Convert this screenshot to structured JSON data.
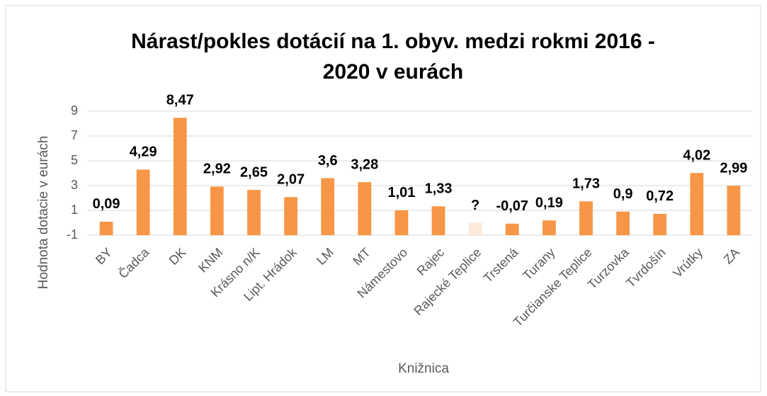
{
  "chart_data": {
    "type": "bar",
    "title": [
      "Nárast/pokles dotácií na 1. obyv. medzi rokmi 2016 -",
      "2020 v eurách"
    ],
    "x_label": "Knižnica",
    "y_label": "Hodnota dotacie v eurách",
    "categories": [
      "BY",
      "Čadca",
      "DK",
      "KNM",
      "Krásno n/K",
      "Lipt. Hrádok",
      "LM",
      "MT",
      "Námestovo",
      "Rajec",
      "Rajecké Teplice",
      "Trstená",
      "Turany",
      "Turčianske Teplice",
      "Turzovka",
      "Tvrdošín",
      "Vrútky",
      "ZA"
    ],
    "values": [
      0.09,
      4.29,
      8.47,
      2.92,
      2.65,
      2.07,
      3.6,
      3.28,
      1.01,
      1.33,
      0,
      -0.07,
      0.19,
      1.73,
      0.9,
      0.72,
      4.02,
      2.99
    ],
    "value_labels": [
      "0,09",
      "4,29",
      "8,47",
      "2,92",
      "2,65",
      "2,07",
      "3,6",
      "3,28",
      "1,01",
      "1,33",
      "?",
      "-0,07",
      "0,19",
      "1,73",
      "0,9",
      "0,72",
      "4,02",
      "2,99"
    ],
    "colors": [
      "#f79646",
      "#f79646",
      "#f79646",
      "#f79646",
      "#f79646",
      "#f79646",
      "#f79646",
      "#f79646",
      "#f79646",
      "#f79646",
      "#fde9d9",
      "#f79646",
      "#f79646",
      "#f79646",
      "#f79646",
      "#f79646",
      "#f79646",
      "#f79646"
    ],
    "ylim": [
      -1,
      9
    ],
    "yticks": [
      -1,
      1,
      3,
      5,
      7,
      9
    ],
    "grid": true
  }
}
